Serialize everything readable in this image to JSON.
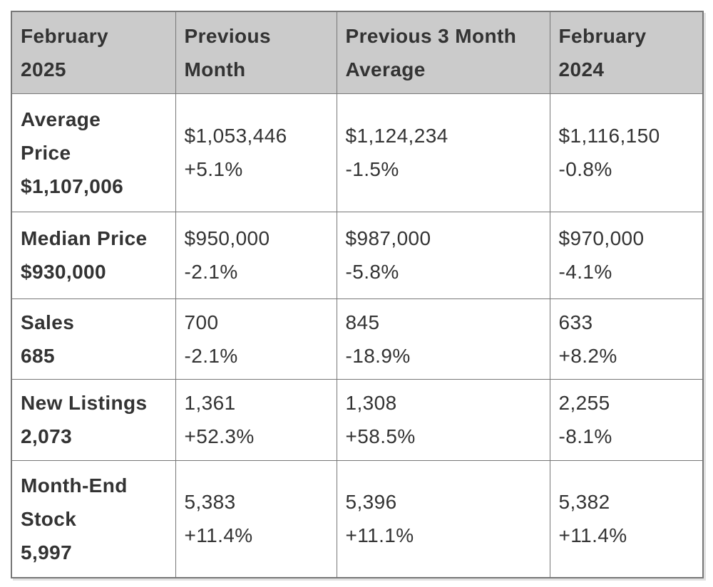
{
  "colors": {
    "page_background": "#ffffff",
    "header_background": "#cbcbcb",
    "cell_background": "#ffffff",
    "border": "#777777",
    "text": "#333333"
  },
  "table": {
    "header_cells": [
      "February\n2025",
      "Previous\nMonth",
      "Previous 3 Month\nAverage",
      "February\n2024"
    ],
    "rows": [
      {
        "metric": "Average\nPrice",
        "current": "$1,107,006",
        "cells": [
          {
            "value": "$1,053,446",
            "change": "+5.1%"
          },
          {
            "value": "$1,124,234",
            "change": "-1.5%"
          },
          {
            "value": "$1,116,150",
            "change": "-0.8%"
          }
        ]
      },
      {
        "metric": "Median Price",
        "current": "$930,000",
        "cells": [
          {
            "value": "$950,000",
            "change": "-2.1%"
          },
          {
            "value": "$987,000",
            "change": "-5.8%"
          },
          {
            "value": "$970,000",
            "change": "-4.1%"
          }
        ]
      },
      {
        "metric": "Sales",
        "current": "685",
        "cells": [
          {
            "value": "700",
            "change": "-2.1%"
          },
          {
            "value": "845",
            "change": "-18.9%"
          },
          {
            "value": "633",
            "change": "+8.2%"
          }
        ]
      },
      {
        "metric": "New Listings",
        "current": "2,073",
        "cells": [
          {
            "value": "1,361",
            "change": "+52.3%"
          },
          {
            "value": "1,308",
            "change": "+58.5%"
          },
          {
            "value": "2,255",
            "change": "-8.1%"
          }
        ]
      },
      {
        "metric": "Month-End\nStock",
        "current": "5,997",
        "cells": [
          {
            "value": "5,383",
            "change": "+11.4%"
          },
          {
            "value": "5,396",
            "change": "+11.1%"
          },
          {
            "value": "5,382",
            "change": "+11.4%"
          }
        ]
      }
    ]
  },
  "chart_data": {
    "type": "table",
    "columns": [
      "February 2025",
      "Previous Month",
      "Previous 3 Month Average",
      "February 2024"
    ],
    "rows": [
      {
        "metric": "Average Price",
        "february_2025": "$1,107,006",
        "previous_month": {
          "value": "$1,053,446",
          "change_pct": 5.1
        },
        "previous_3_month_average": {
          "value": "$1,124,234",
          "change_pct": -1.5
        },
        "february_2024": {
          "value": "$1,116,150",
          "change_pct": -0.8
        }
      },
      {
        "metric": "Median Price",
        "february_2025": "$930,000",
        "previous_month": {
          "value": "$950,000",
          "change_pct": -2.1
        },
        "previous_3_month_average": {
          "value": "$987,000",
          "change_pct": -5.8
        },
        "february_2024": {
          "value": "$970,000",
          "change_pct": -4.1
        }
      },
      {
        "metric": "Sales",
        "february_2025": "685",
        "previous_month": {
          "value": "700",
          "change_pct": -2.1
        },
        "previous_3_month_average": {
          "value": "845",
          "change_pct": -18.9
        },
        "february_2024": {
          "value": "633",
          "change_pct": 8.2
        }
      },
      {
        "metric": "New Listings",
        "february_2025": "2,073",
        "previous_month": {
          "value": "1,361",
          "change_pct": 52.3
        },
        "previous_3_month_average": {
          "value": "1,308",
          "change_pct": 58.5
        },
        "february_2024": {
          "value": "2,255",
          "change_pct": -8.1
        }
      },
      {
        "metric": "Month-End Stock",
        "february_2025": "5,997",
        "previous_month": {
          "value": "5,383",
          "change_pct": 11.4
        },
        "previous_3_month_average": {
          "value": "5,396",
          "change_pct": 11.1
        },
        "february_2024": {
          "value": "5,382",
          "change_pct": 11.4
        }
      }
    ]
  }
}
